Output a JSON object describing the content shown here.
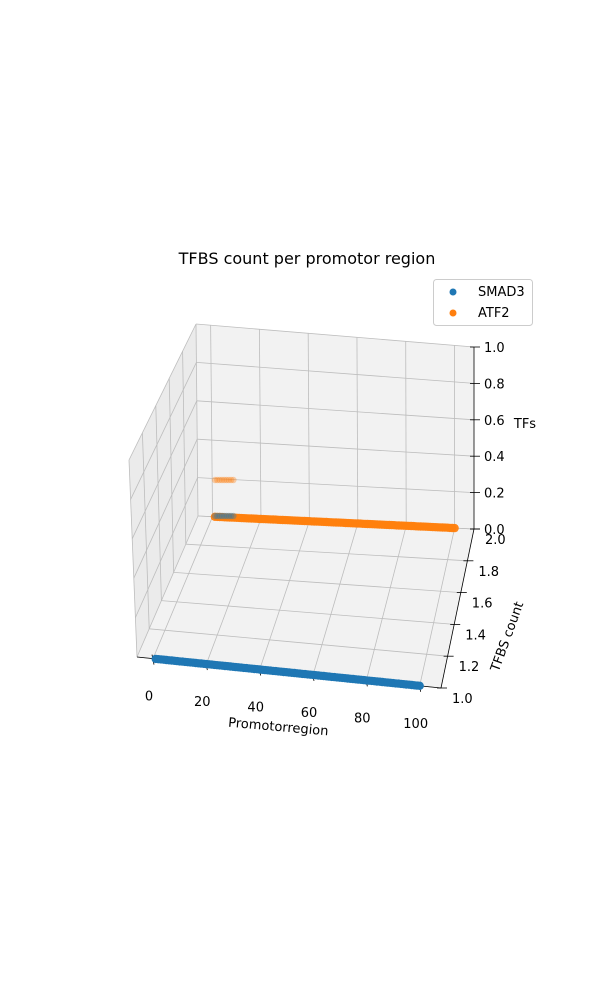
{
  "chart_data": {
    "type": "scatter",
    "projection": "3d",
    "title": "TFBS count per promotor region",
    "xlabel": "Promotorregion",
    "ylabel": "TFBS count",
    "zlabel": "TFs",
    "xticks": [
      "0",
      "20",
      "40",
      "60",
      "80",
      "100"
    ],
    "yticks": [
      "1.0",
      "1.2",
      "1.4",
      "1.6",
      "1.8",
      "2.0"
    ],
    "zticks": [
      "0.0",
      "0.2",
      "0.4",
      "0.6",
      "0.8",
      "1.0"
    ],
    "xlim": [
      -6,
      108
    ],
    "ylim": [
      1.0,
      2.0
    ],
    "zlim": [
      0.0,
      1.0
    ],
    "grid": true,
    "legend_position": "top-right",
    "series": [
      {
        "name": "SMAD3",
        "color": "#1f77b4",
        "y": 1.0,
        "z": 0.0,
        "x_start": 1,
        "x_end": 100,
        "step": 1
      },
      {
        "name": "ATF2",
        "color": "#ff7f0e",
        "y": 2.0,
        "z": 0.0,
        "x_start": 1,
        "x_end": 100,
        "step": 1
      }
    ]
  }
}
